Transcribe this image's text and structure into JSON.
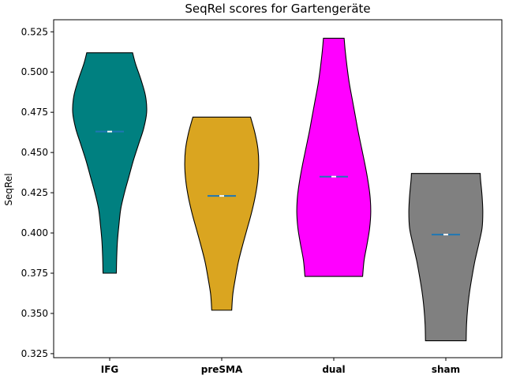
{
  "chart_data": {
    "type": "violin",
    "title": "SeqRel scores for Gartengeräte",
    "xlabel": "",
    "ylabel": "SeqRel",
    "ylim": [
      0.3225,
      0.5325
    ],
    "yticks": [
      0.325,
      0.35,
      0.375,
      0.4,
      0.425,
      0.45,
      0.475,
      0.5,
      0.525
    ],
    "ytick_labels": [
      "0.325",
      "0.350",
      "0.375",
      "0.400",
      "0.425",
      "0.450",
      "0.475",
      "0.500",
      "0.525"
    ],
    "categories": [
      "IFG",
      "preSMA",
      "dual",
      "sham"
    ],
    "grid": false,
    "legend": false,
    "series": [
      {
        "category": "IFG",
        "color": "#008080",
        "min": 0.375,
        "max": 0.512,
        "median": 0.463,
        "profile": [
          [
            0.375,
            0.18
          ],
          [
            0.385,
            0.19
          ],
          [
            0.395,
            0.21
          ],
          [
            0.405,
            0.25
          ],
          [
            0.415,
            0.3
          ],
          [
            0.425,
            0.4
          ],
          [
            0.435,
            0.52
          ],
          [
            0.445,
            0.64
          ],
          [
            0.455,
            0.78
          ],
          [
            0.465,
            0.92
          ],
          [
            0.475,
            1.0
          ],
          [
            0.485,
            0.97
          ],
          [
            0.495,
            0.85
          ],
          [
            0.505,
            0.7
          ],
          [
            0.512,
            0.62
          ]
        ]
      },
      {
        "category": "preSMA",
        "color": "#DAA520",
        "min": 0.352,
        "max": 0.472,
        "median": 0.423,
        "profile": [
          [
            0.352,
            0.27
          ],
          [
            0.362,
            0.3
          ],
          [
            0.372,
            0.37
          ],
          [
            0.382,
            0.45
          ],
          [
            0.392,
            0.56
          ],
          [
            0.402,
            0.68
          ],
          [
            0.412,
            0.8
          ],
          [
            0.422,
            0.9
          ],
          [
            0.432,
            0.97
          ],
          [
            0.442,
            1.0
          ],
          [
            0.452,
            0.98
          ],
          [
            0.462,
            0.9
          ],
          [
            0.472,
            0.78
          ]
        ]
      },
      {
        "category": "dual",
        "color": "#FF00FF",
        "min": 0.373,
        "max": 0.521,
        "median": 0.435,
        "profile": [
          [
            0.373,
            0.78
          ],
          [
            0.383,
            0.82
          ],
          [
            0.393,
            0.9
          ],
          [
            0.403,
            0.97
          ],
          [
            0.413,
            1.0
          ],
          [
            0.423,
            0.98
          ],
          [
            0.433,
            0.92
          ],
          [
            0.443,
            0.84
          ],
          [
            0.453,
            0.75
          ],
          [
            0.463,
            0.66
          ],
          [
            0.473,
            0.58
          ],
          [
            0.483,
            0.5
          ],
          [
            0.493,
            0.42
          ],
          [
            0.503,
            0.36
          ],
          [
            0.513,
            0.31
          ],
          [
            0.521,
            0.28
          ]
        ]
      },
      {
        "category": "sham",
        "color": "#808080",
        "min": 0.333,
        "max": 0.437,
        "median": 0.399,
        "profile": [
          [
            0.333,
            0.55
          ],
          [
            0.343,
            0.56
          ],
          [
            0.353,
            0.59
          ],
          [
            0.363,
            0.64
          ],
          [
            0.373,
            0.71
          ],
          [
            0.383,
            0.79
          ],
          [
            0.393,
            0.89
          ],
          [
            0.403,
            0.98
          ],
          [
            0.413,
            1.0
          ],
          [
            0.423,
            0.98
          ],
          [
            0.433,
            0.94
          ],
          [
            0.437,
            0.93
          ]
        ]
      }
    ],
    "median_line_color": "#1f77b4",
    "median_marker_color": "#ffffff"
  }
}
